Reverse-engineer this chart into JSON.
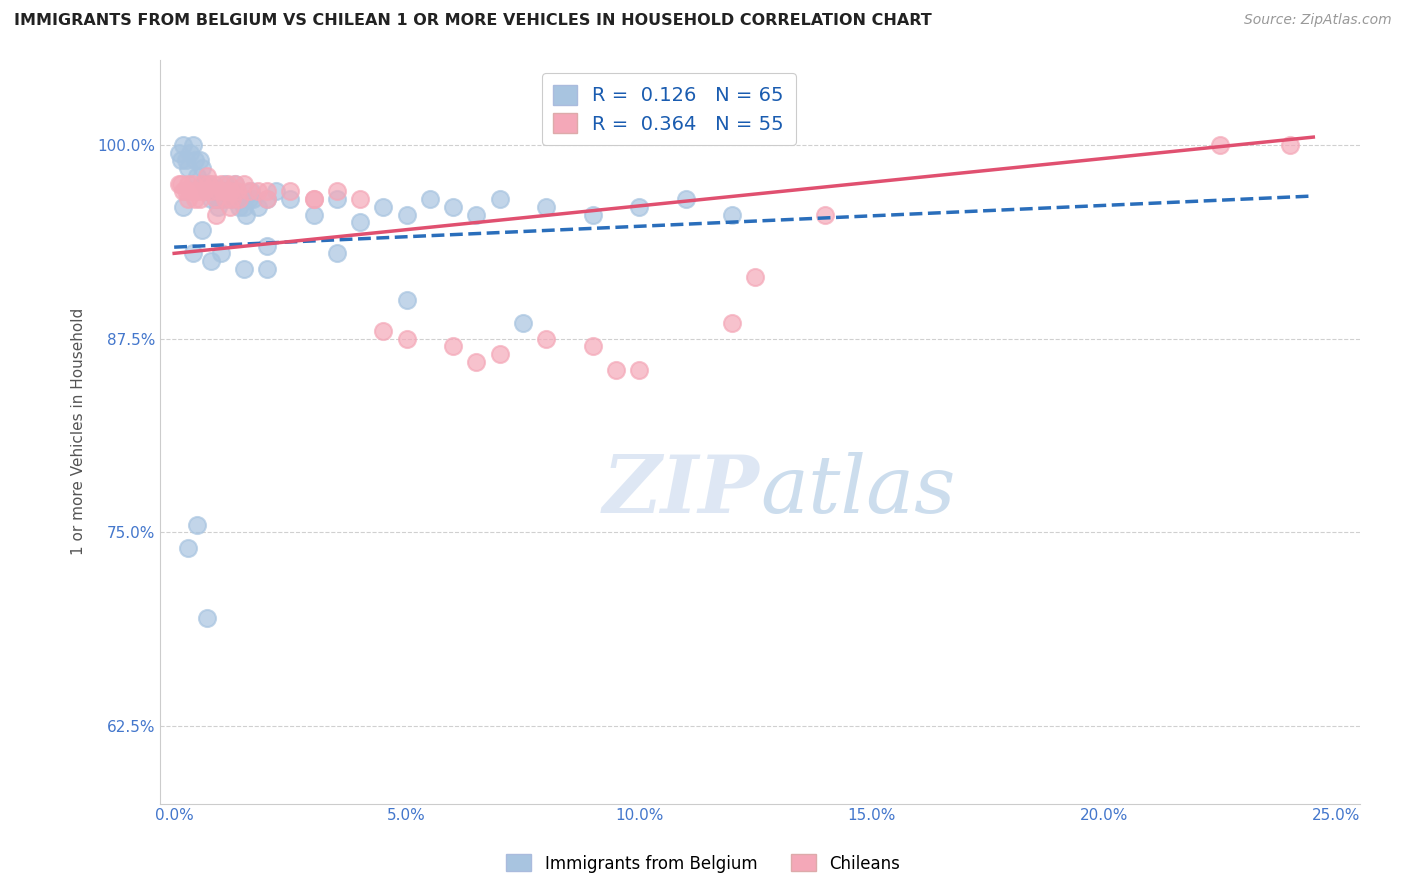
{
  "title": "IMMIGRANTS FROM BELGIUM VS CHILEAN 1 OR MORE VEHICLES IN HOUSEHOLD CORRELATION CHART",
  "source": "Source: ZipAtlas.com",
  "ylabel": "1 or more Vehicles in Household",
  "xlabel_belgium": "Immigrants from Belgium",
  "xlabel_chileans": "Chileans",
  "x_ticks": [
    0.0,
    5.0,
    10.0,
    15.0,
    20.0,
    25.0
  ],
  "x_tick_labels": [
    "0.0%",
    "5.0%",
    "10.0%",
    "15.0%",
    "20.0%",
    "25.0%"
  ],
  "y_ticks": [
    0.625,
    0.75,
    0.875,
    1.0
  ],
  "y_tick_labels": [
    "62.5%",
    "75.0%",
    "87.5%",
    "100.0%"
  ],
  "xlim": [
    -0.3,
    25.5
  ],
  "ylim": [
    0.575,
    1.055
  ],
  "R_belgium": 0.126,
  "N_belgium": 65,
  "R_chileans": 0.364,
  "N_chileans": 55,
  "belgium_color": "#a8c4e0",
  "chilean_color": "#f4a8b8",
  "belgium_line_color": "#2a6ebb",
  "chilean_line_color": "#e05070",
  "background_color": "#ffffff",
  "grid_color": "#d0d0d0",
  "title_color": "#222222",
  "source_color": "#999999",
  "ylabel_color": "#555555",
  "tick_label_color": "#4477cc",
  "legend_text_color": "#1a5cb0",
  "belgium_scatter_x": [
    0.1,
    0.15,
    0.2,
    0.25,
    0.3,
    0.35,
    0.4,
    0.45,
    0.5,
    0.55,
    0.6,
    0.65,
    0.7,
    0.75,
    0.8,
    0.85,
    0.9,
    0.95,
    1.0,
    1.05,
    1.1,
    1.15,
    1.2,
    1.25,
    1.3,
    1.35,
    1.4,
    1.45,
    1.5,
    1.55,
    1.6,
    1.65,
    1.7,
    1.8,
    2.0,
    2.2,
    2.5,
    3.0,
    3.5,
    4.0,
    4.5,
    5.0,
    5.5,
    6.0,
    6.5,
    7.0,
    8.0,
    9.0,
    10.0,
    11.0,
    12.0,
    0.2,
    0.4,
    0.6,
    0.8,
    1.0,
    1.5,
    2.0,
    0.5,
    2.0,
    3.5,
    5.0,
    7.5,
    0.3,
    0.7
  ],
  "belgium_scatter_y": [
    0.995,
    0.99,
    1.0,
    0.99,
    0.985,
    0.995,
    1.0,
    0.99,
    0.98,
    0.99,
    0.985,
    0.975,
    0.97,
    0.975,
    0.965,
    0.97,
    0.965,
    0.96,
    0.965,
    0.97,
    0.975,
    0.97,
    0.965,
    0.97,
    0.975,
    0.965,
    0.96,
    0.965,
    0.96,
    0.955,
    0.965,
    0.97,
    0.965,
    0.96,
    0.965,
    0.97,
    0.965,
    0.955,
    0.965,
    0.95,
    0.96,
    0.955,
    0.965,
    0.96,
    0.955,
    0.965,
    0.96,
    0.955,
    0.96,
    0.965,
    0.955,
    0.96,
    0.93,
    0.945,
    0.925,
    0.93,
    0.92,
    0.935,
    0.755,
    0.92,
    0.93,
    0.9,
    0.885,
    0.74,
    0.695
  ],
  "chilean_scatter_x": [
    0.1,
    0.15,
    0.2,
    0.25,
    0.3,
    0.35,
    0.4,
    0.45,
    0.5,
    0.55,
    0.6,
    0.65,
    0.7,
    0.75,
    0.8,
    0.85,
    0.9,
    0.95,
    1.0,
    1.05,
    1.1,
    1.15,
    1.2,
    1.25,
    1.3,
    1.35,
    1.4,
    1.5,
    1.6,
    1.8,
    2.0,
    2.5,
    3.0,
    3.5,
    4.0,
    5.0,
    6.0,
    7.0,
    8.0,
    9.0,
    10.0,
    12.0,
    14.0,
    24.0,
    0.3,
    0.6,
    0.9,
    1.2,
    2.0,
    3.0,
    4.5,
    6.5,
    9.5,
    12.5,
    22.5
  ],
  "chilean_scatter_y": [
    0.975,
    0.975,
    0.97,
    0.97,
    0.975,
    0.97,
    0.975,
    0.965,
    0.97,
    0.965,
    0.975,
    0.97,
    0.98,
    0.975,
    0.97,
    0.975,
    0.965,
    0.97,
    0.975,
    0.97,
    0.965,
    0.975,
    0.97,
    0.965,
    0.975,
    0.97,
    0.965,
    0.975,
    0.97,
    0.97,
    0.965,
    0.97,
    0.965,
    0.97,
    0.965,
    0.875,
    0.87,
    0.865,
    0.875,
    0.87,
    0.855,
    0.885,
    0.955,
    1.0,
    0.965,
    0.97,
    0.955,
    0.96,
    0.97,
    0.965,
    0.88,
    0.86,
    0.855,
    0.915,
    1.0
  ],
  "belgium_trend_x0": 0.0,
  "belgium_trend_y0": 0.934,
  "belgium_trend_x1": 24.5,
  "belgium_trend_y1": 0.967,
  "chilean_trend_x0": 0.0,
  "chilean_trend_y0": 0.93,
  "chilean_trend_x1": 24.5,
  "chilean_trend_y1": 1.005
}
